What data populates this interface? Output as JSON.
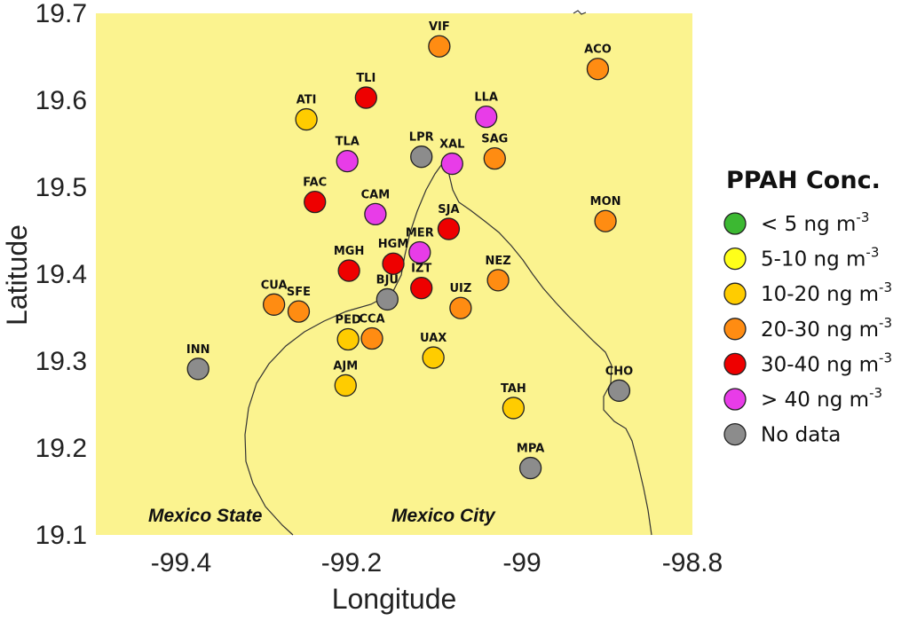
{
  "chart_data": {
    "type": "scatter",
    "xlabel": "Longitude",
    "ylabel": "Latitude",
    "xlim": [
      -99.5,
      -98.8
    ],
    "ylim": [
      19.1,
      19.7
    ],
    "x_ticks": [
      "-99.4",
      "-99.2",
      "-99",
      "-98.8"
    ],
    "y_ticks": [
      "19.7",
      "19.6",
      "19.5",
      "19.4",
      "19.3",
      "19.2",
      "19.1"
    ],
    "regions": [
      "Mexico State",
      "Mexico City"
    ],
    "legend": {
      "title": "PPAH Conc.",
      "placement": "right",
      "items": [
        {
          "text": "< 5 ng m",
          "sup": "-3",
          "color": "#3cb832"
        },
        {
          "text": "5-10 ng m",
          "sup": "-3",
          "color": "#ffff1a"
        },
        {
          "text": "10-20 ng m",
          "sup": "-3",
          "color": "#ffcc00"
        },
        {
          "text": "20-30 ng m",
          "sup": "-3",
          "color": "#ff8c12"
        },
        {
          "text": "30-40 ng m",
          "sup": "-3",
          "color": "#ee0000"
        },
        {
          "text": "> 40 ng m",
          "sup": "-3",
          "color": "#e83ce8"
        },
        {
          "text": "No data",
          "sup": "",
          "color": "#8c8c8c"
        }
      ]
    },
    "stations": [
      {
        "name": "VIF",
        "lon": -99.097,
        "lat": 19.662,
        "category": "20-30"
      },
      {
        "name": "ACO",
        "lon": -98.911,
        "lat": 19.636,
        "category": "20-30"
      },
      {
        "name": "TLI",
        "lon": -99.183,
        "lat": 19.603,
        "category": "30-40"
      },
      {
        "name": "ATI",
        "lon": -99.253,
        "lat": 19.578,
        "category": "10-20"
      },
      {
        "name": "LLA",
        "lon": -99.042,
        "lat": 19.581,
        "category": ">40"
      },
      {
        "name": "TLA",
        "lon": -99.205,
        "lat": 19.53,
        "category": ">40"
      },
      {
        "name": "LPR",
        "lon": -99.118,
        "lat": 19.535,
        "category": "nodata"
      },
      {
        "name": "XAL",
        "lon": -99.082,
        "lat": 19.527,
        "category": ">40"
      },
      {
        "name": "SAG",
        "lon": -99.032,
        "lat": 19.533,
        "category": "20-30"
      },
      {
        "name": "FAC",
        "lon": -99.243,
        "lat": 19.483,
        "category": "30-40"
      },
      {
        "name": "CAM",
        "lon": -99.172,
        "lat": 19.469,
        "category": ">40"
      },
      {
        "name": "MON",
        "lon": -98.902,
        "lat": 19.461,
        "category": "20-30"
      },
      {
        "name": "SJA",
        "lon": -99.086,
        "lat": 19.452,
        "category": "30-40"
      },
      {
        "name": "MER",
        "lon": -99.12,
        "lat": 19.425,
        "category": ">40"
      },
      {
        "name": "MGH",
        "lon": -99.203,
        "lat": 19.404,
        "category": "30-40"
      },
      {
        "name": "HGM",
        "lon": -99.151,
        "lat": 19.412,
        "category": "30-40"
      },
      {
        "name": "NEZ",
        "lon": -99.028,
        "lat": 19.393,
        "category": "20-30"
      },
      {
        "name": "IZT",
        "lon": -99.118,
        "lat": 19.384,
        "category": "30-40"
      },
      {
        "name": "CUA",
        "lon": -99.291,
        "lat": 19.365,
        "category": "20-30"
      },
      {
        "name": "SFE",
        "lon": -99.262,
        "lat": 19.357,
        "category": "20-30"
      },
      {
        "name": "BJU",
        "lon": -99.158,
        "lat": 19.371,
        "category": "nodata"
      },
      {
        "name": "UIZ",
        "lon": -99.072,
        "lat": 19.361,
        "category": "20-30"
      },
      {
        "name": "PED",
        "lon": -99.204,
        "lat": 19.325,
        "category": "10-20"
      },
      {
        "name": "CCA",
        "lon": -99.176,
        "lat": 19.326,
        "category": "20-30"
      },
      {
        "name": "UAX",
        "lon": -99.104,
        "lat": 19.304,
        "category": "10-20"
      },
      {
        "name": "INN",
        "lon": -99.38,
        "lat": 19.291,
        "category": "nodata"
      },
      {
        "name": "AJM",
        "lon": -99.207,
        "lat": 19.272,
        "category": "10-20"
      },
      {
        "name": "CHO",
        "lon": -98.886,
        "lat": 19.266,
        "category": "nodata"
      },
      {
        "name": "TAH",
        "lon": -99.01,
        "lat": 19.246,
        "category": "10-20"
      },
      {
        "name": "MPA",
        "lon": -98.99,
        "lat": 19.177,
        "category": "nodata"
      }
    ]
  }
}
